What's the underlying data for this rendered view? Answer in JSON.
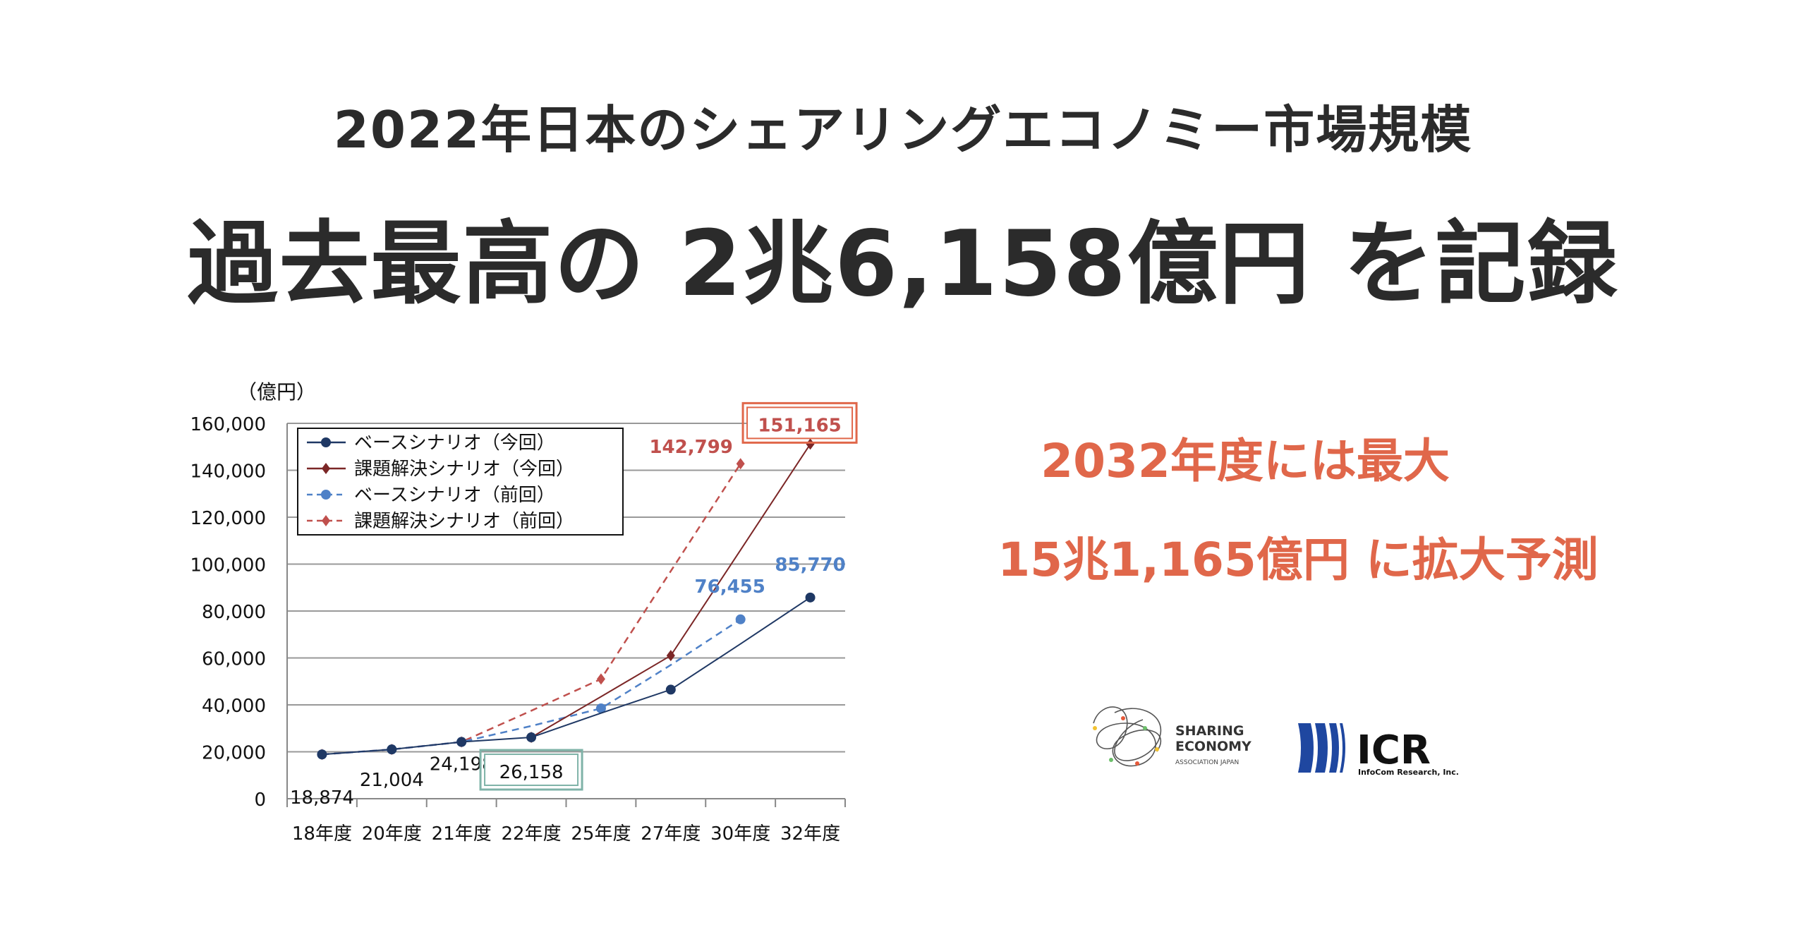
{
  "headline": {
    "line1": "2022年日本のシェアリングエコノミー市場規模",
    "line2": "過去最高の 2兆6,158億円 を記録"
  },
  "callout": {
    "line1": "2032年度には最大",
    "line2": "15兆1,165億円 に拡大予測",
    "color": "#e0674a"
  },
  "logos": {
    "sharing_economy": {
      "line1": "SHARING",
      "line2": "ECONOMY",
      "line3": "ASSOCIATION JAPAN"
    },
    "icr": {
      "name": "ICR",
      "sub": "InfoCom Research, Inc.",
      "color": "#1f47a0"
    }
  },
  "chart_data": {
    "type": "line",
    "unit_label": "（億円）",
    "categories": [
      "18年度",
      "20年度",
      "21年度",
      "22年度",
      "25年度",
      "27年度",
      "30年度",
      "32年度"
    ],
    "ylim": [
      0,
      160000
    ],
    "yticks": [
      0,
      20000,
      40000,
      60000,
      80000,
      100000,
      120000,
      140000,
      160000
    ],
    "ytick_labels": [
      "0",
      "20,000",
      "40,000",
      "60,000",
      "80,000",
      "100,000",
      "120,000",
      "140,000",
      "160,000"
    ],
    "grid": true,
    "legend_position": "top-left",
    "series": [
      {
        "name": "ベースシナリオ（今回）",
        "color": "#1f3864",
        "dashed": false,
        "marker": "circle",
        "values": [
          18874,
          21004,
          24198,
          26158,
          36500,
          46500,
          66000,
          85770
        ],
        "markers": [
          true,
          true,
          true,
          true,
          false,
          true,
          false,
          true
        ]
      },
      {
        "name": "課題解決シナリオ（今回）",
        "color": "#7b2626",
        "dashed": false,
        "marker": "diamond",
        "values": [
          null,
          null,
          null,
          26158,
          43500,
          61000,
          106000,
          151165
        ],
        "markers": [
          false,
          false,
          false,
          true,
          false,
          true,
          false,
          true
        ]
      },
      {
        "name": "ベースシナリオ（前回）",
        "color": "#4f81c7",
        "dashed": true,
        "marker": "circle",
        "values": [
          18874,
          21004,
          24198,
          31000,
          38500,
          57000,
          76455,
          null
        ],
        "markers": [
          true,
          true,
          true,
          false,
          true,
          false,
          true,
          false
        ]
      },
      {
        "name": "課題解決シナリオ（前回）",
        "color": "#c0504d",
        "dashed": true,
        "marker": "diamond",
        "values": [
          18874,
          21004,
          24198,
          37500,
          51000,
          97000,
          142799,
          null
        ],
        "markers": [
          true,
          true,
          true,
          false,
          true,
          false,
          true,
          false
        ]
      }
    ],
    "data_labels": [
      {
        "text": "18,874",
        "category": 0,
        "value": 18874,
        "color": "#111111"
      },
      {
        "text": "21,004",
        "category": 1,
        "value": 21004,
        "color": "#111111"
      },
      {
        "text": "24,198",
        "category": 2,
        "value": 24198,
        "color": "#111111"
      },
      {
        "text": "26,158",
        "category": 3,
        "value": 26158,
        "color": "#111111",
        "box": "#7fb3a8"
      },
      {
        "text": "142,799",
        "category": 6,
        "value": 142799,
        "color": "#c0504d"
      },
      {
        "text": "151,165",
        "category": 7,
        "value": 151165,
        "color": "#c0504d",
        "box": "#e0674a"
      },
      {
        "text": "76,455",
        "category": 6,
        "value": 76455,
        "color": "#4f81c7"
      },
      {
        "text": "85,770",
        "category": 7,
        "value": 85770,
        "color": "#4f81c7"
      }
    ]
  }
}
